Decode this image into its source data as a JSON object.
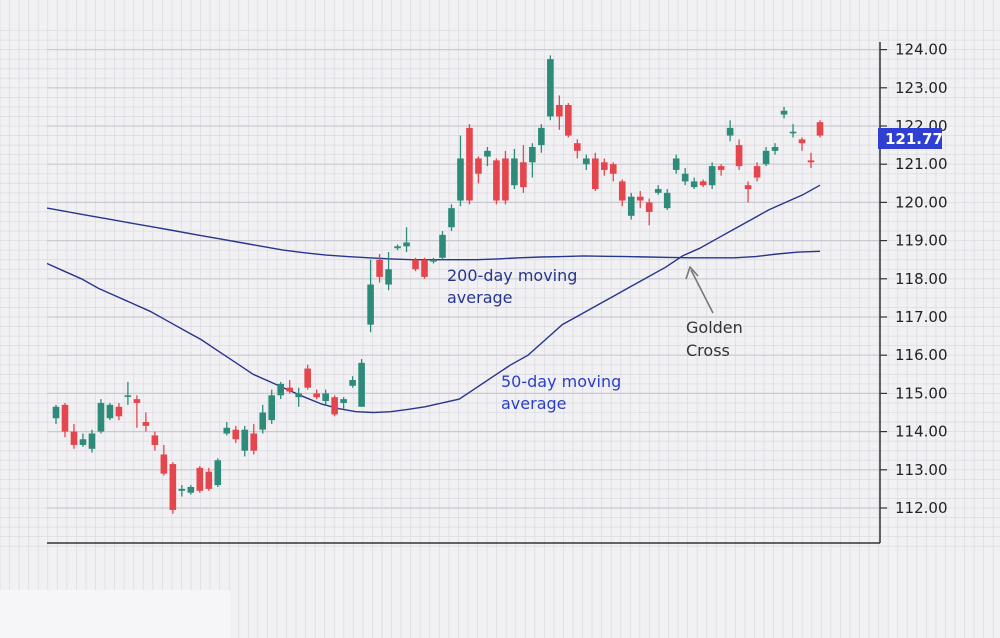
{
  "chart_data": {
    "type": "candlestick",
    "title": "",
    "xlabel": "",
    "ylabel": "",
    "ylim": [
      111.1,
      124.6
    ],
    "y_ticks": [
      "112.00",
      "113.00",
      "114.00",
      "115.00",
      "116.00",
      "117.00",
      "118.00",
      "119.00",
      "120.00",
      "121.00",
      "122.00",
      "123.00",
      "124.00"
    ],
    "grid": true,
    "colors": {
      "up": "#2e8b7a",
      "down": "#e5464d",
      "ma": "#27358c",
      "annotation": "#333333",
      "price_tag": "#2f3fd1"
    },
    "last_price": "121.77",
    "candles": [
      [
        114.35,
        114.65,
        114.7,
        114.2
      ],
      [
        114.7,
        114.0,
        114.75,
        113.85
      ],
      [
        114.0,
        113.65,
        114.2,
        113.55
      ],
      [
        113.65,
        113.8,
        113.95,
        113.6
      ],
      [
        113.55,
        113.95,
        114.05,
        113.45
      ],
      [
        114.0,
        114.75,
        114.85,
        113.95
      ],
      [
        114.35,
        114.7,
        114.75,
        114.3
      ],
      [
        114.65,
        114.4,
        114.75,
        114.3
      ],
      [
        114.95,
        114.95,
        115.3,
        114.7
      ],
      [
        114.85,
        114.75,
        114.95,
        114.1
      ],
      [
        114.25,
        114.15,
        114.5,
        114.0
      ],
      [
        113.9,
        113.65,
        114.0,
        113.5
      ],
      [
        113.4,
        112.9,
        113.65,
        112.85
      ],
      [
        113.15,
        111.95,
        113.2,
        111.85
      ],
      [
        112.45,
        112.5,
        112.6,
        112.3
      ],
      [
        112.4,
        112.55,
        112.6,
        112.35
      ],
      [
        113.05,
        112.45,
        113.1,
        112.4
      ],
      [
        112.95,
        112.5,
        113.05,
        112.45
      ],
      [
        112.6,
        113.25,
        113.3,
        112.55
      ],
      [
        113.95,
        114.1,
        114.25,
        113.9
      ],
      [
        114.05,
        113.8,
        114.15,
        113.7
      ],
      [
        113.5,
        114.05,
        114.15,
        113.35
      ],
      [
        113.95,
        113.5,
        114.2,
        113.4
      ],
      [
        114.05,
        114.5,
        114.7,
        113.95
      ],
      [
        114.3,
        114.95,
        115.1,
        114.2
      ],
      [
        114.95,
        115.25,
        115.3,
        114.85
      ],
      [
        115.15,
        115.05,
        115.35,
        115.0
      ],
      [
        114.9,
        115.0,
        115.15,
        114.65
      ],
      [
        115.65,
        115.15,
        115.75,
        115.1
      ],
      [
        115.0,
        114.9,
        115.1,
        114.85
      ],
      [
        114.8,
        115.0,
        115.1,
        114.7
      ],
      [
        114.9,
        114.45,
        114.95,
        114.4
      ],
      [
        114.75,
        114.85,
        114.9,
        114.6
      ],
      [
        115.2,
        115.35,
        115.45,
        115.15
      ],
      [
        114.65,
        115.8,
        115.9,
        114.65
      ],
      [
        116.8,
        117.85,
        118.5,
        116.6
      ],
      [
        118.5,
        118.05,
        118.65,
        117.9
      ],
      [
        117.85,
        118.25,
        118.7,
        117.7
      ],
      [
        118.8,
        118.85,
        118.9,
        118.75
      ],
      [
        118.85,
        118.95,
        119.35,
        118.7
      ],
      [
        118.5,
        118.25,
        118.55,
        118.2
      ],
      [
        118.5,
        118.05,
        118.55,
        118.0
      ],
      [
        118.45,
        118.5,
        118.55,
        118.4
      ],
      [
        118.55,
        119.15,
        119.25,
        118.5
      ],
      [
        119.35,
        119.85,
        119.95,
        119.25
      ],
      [
        120.05,
        121.15,
        121.75,
        119.9
      ],
      [
        121.95,
        120.05,
        122.05,
        119.95
      ],
      [
        121.15,
        120.75,
        121.2,
        120.5
      ],
      [
        121.2,
        121.35,
        121.45,
        120.95
      ],
      [
        121.1,
        120.05,
        121.15,
        119.95
      ],
      [
        121.15,
        120.05,
        121.35,
        119.95
      ],
      [
        120.45,
        121.15,
        121.4,
        120.35
      ],
      [
        121.05,
        120.4,
        121.5,
        120.25
      ],
      [
        121.05,
        121.45,
        121.55,
        120.65
      ],
      [
        121.5,
        121.95,
        122.05,
        121.3
      ],
      [
        122.25,
        123.75,
        123.85,
        122.15
      ],
      [
        122.55,
        122.25,
        122.8,
        121.9
      ],
      [
        122.55,
        121.75,
        122.6,
        121.7
      ],
      [
        121.55,
        121.35,
        121.65,
        121.15
      ],
      [
        121.0,
        121.15,
        121.25,
        120.85
      ],
      [
        121.15,
        120.35,
        121.3,
        120.3
      ],
      [
        121.05,
        120.85,
        121.15,
        120.7
      ],
      [
        121.0,
        120.75,
        121.05,
        120.55
      ],
      [
        120.55,
        120.05,
        120.6,
        119.9
      ],
      [
        119.65,
        120.15,
        120.25,
        119.55
      ],
      [
        120.15,
        120.05,
        120.3,
        119.85
      ],
      [
        120.0,
        119.75,
        120.1,
        119.4
      ],
      [
        120.25,
        120.35,
        120.45,
        120.2
      ],
      [
        119.85,
        120.25,
        120.35,
        119.8
      ],
      [
        120.85,
        121.15,
        121.25,
        120.75
      ],
      [
        120.55,
        120.75,
        120.9,
        120.45
      ],
      [
        120.4,
        120.55,
        120.65,
        120.35
      ],
      [
        120.55,
        120.45,
        120.6,
        120.4
      ],
      [
        120.45,
        120.95,
        121.05,
        120.35
      ],
      [
        120.95,
        120.85,
        121.0,
        120.7
      ],
      [
        121.75,
        121.95,
        122.15,
        121.6
      ],
      [
        121.5,
        120.95,
        121.65,
        120.85
      ],
      [
        120.45,
        120.35,
        120.55,
        120.0
      ],
      [
        120.95,
        120.65,
        121.05,
        120.55
      ],
      [
        121.0,
        121.35,
        121.45,
        120.95
      ],
      [
        121.35,
        121.45,
        121.55,
        121.25
      ],
      [
        122.3,
        122.4,
        122.5,
        122.2
      ],
      [
        121.85,
        121.85,
        122.05,
        121.7
      ],
      [
        121.65,
        121.55,
        121.7,
        121.35
      ],
      [
        121.1,
        121.05,
        121.3,
        120.9
      ],
      [
        122.1,
        121.75,
        122.15,
        121.7
      ]
    ],
    "moving_averages": [
      {
        "label": "50-day moving average",
        "values": [
          118.4,
          118.2,
          118.0,
          117.75,
          117.55,
          117.35,
          117.15,
          116.9,
          116.65,
          116.4,
          116.1,
          115.8,
          115.5,
          115.3,
          115.1,
          114.9,
          114.72,
          114.6,
          114.52,
          114.5,
          114.52,
          114.58,
          114.65,
          114.75,
          114.85,
          115.15,
          115.45,
          115.75,
          116.0,
          116.4,
          116.8,
          117.05,
          117.3,
          117.55,
          117.8,
          118.05,
          118.3,
          118.6,
          118.8,
          119.05,
          119.3,
          119.55,
          119.8,
          120.0,
          120.2,
          120.45
        ]
      },
      {
        "label": "200-day moving average",
        "values": [
          119.85,
          119.75,
          119.65,
          119.55,
          119.45,
          119.35,
          119.25,
          119.15,
          119.05,
          118.95,
          118.85,
          118.75,
          118.68,
          118.62,
          118.58,
          118.55,
          118.52,
          118.5,
          118.5,
          118.5,
          118.5,
          118.52,
          118.55,
          118.57,
          118.58,
          118.6,
          118.59,
          118.58,
          118.57,
          118.56,
          118.55,
          118.55,
          118.55,
          118.58,
          118.65,
          118.7,
          118.72
        ]
      }
    ],
    "annotations": [
      {
        "id": "ma200",
        "text": [
          "200-day moving",
          "average"
        ]
      },
      {
        "id": "ma50",
        "text": [
          "50-day moving",
          "average"
        ]
      },
      {
        "id": "golden_cross",
        "text": [
          "Golden",
          "Cross"
        ]
      }
    ]
  }
}
